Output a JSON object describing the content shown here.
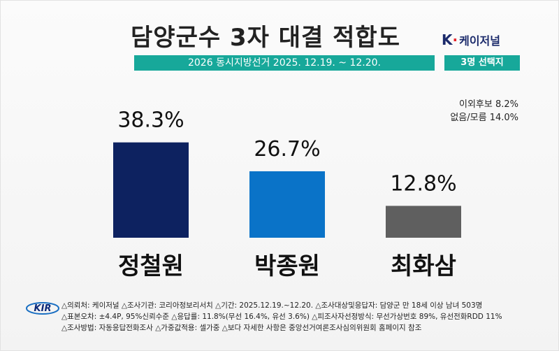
{
  "header": {
    "title": "담양군수 3자 대결 적합도",
    "subtitle": "2026 동시지방선거 2025. 12.19. ~ 12.20.",
    "brand_name": "케이저널",
    "brand_letter": "K",
    "tag": "3명 선택지"
  },
  "others": {
    "line1": "이외후보 8.2%",
    "line2": "없음/모름 14.0%"
  },
  "footer": {
    "logo_text": "KIR",
    "line1": "△의뢰처: 케이저널 △조사기관: 코리아정보리서치 △기간: 2025.12.19.~12.20.  △조사대상및응답자: 담양군 만 18세 이상 남녀 503명",
    "line2": "△표본오차: ±4.4P, 95%신뢰수준 △응답률: 11.8%(무선 16.4%, 유선 3.6%) △피조사자선정방식: 무선가상번호 89%, 유선전화RDD 11%",
    "line3": "△조사방법: 자동응답전화조사 △가중값적용: 셀가중 △보다 자세한 사항은 중앙선거여론조사심의위원회 홈페이지 참조"
  },
  "colors": {
    "accent": "#17a89a",
    "bar1": "#0d2260",
    "bar2": "#0a73c8",
    "bar3": "#5f5f5f"
  },
  "chart_data": {
    "type": "bar",
    "title": "담양군수 3자 대결 적합도",
    "categories": [
      "정철원",
      "박종원",
      "최화삼"
    ],
    "values": [
      38.3,
      26.7,
      12.8
    ],
    "value_labels": [
      "38.3%",
      "26.7%",
      "12.8%"
    ],
    "ylim": [
      0,
      40
    ],
    "unit": "%",
    "grid": false
  }
}
